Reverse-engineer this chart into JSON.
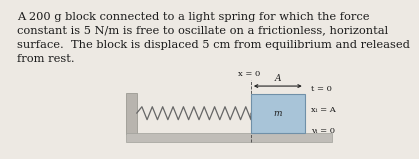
{
  "text_block": "A 200 g block connected to a light spring for which the force\nconstant is 5 N/m is free to oscillate on a frictionless, horizontal\nsurface.  The block is displaced 5 cm from equilibrium and released\nfrom rest.",
  "text_fontsize": 8.2,
  "text_color": "#1a1a1a",
  "bg_color": "#ede9e3",
  "wall_color": "#b8b4ae",
  "block_facecolor": "#a8c4d8",
  "block_edgecolor": "#7090a8",
  "block_label": "m",
  "spring_color": "#666666",
  "floor_color": "#c0bdb8",
  "floor_edge": "#a0a09a",
  "label_x0": "x = 0",
  "label_A": "A",
  "label_t": "t = 0",
  "label_xi": "xᵢ = A",
  "label_vi": "vᵢ = 0"
}
